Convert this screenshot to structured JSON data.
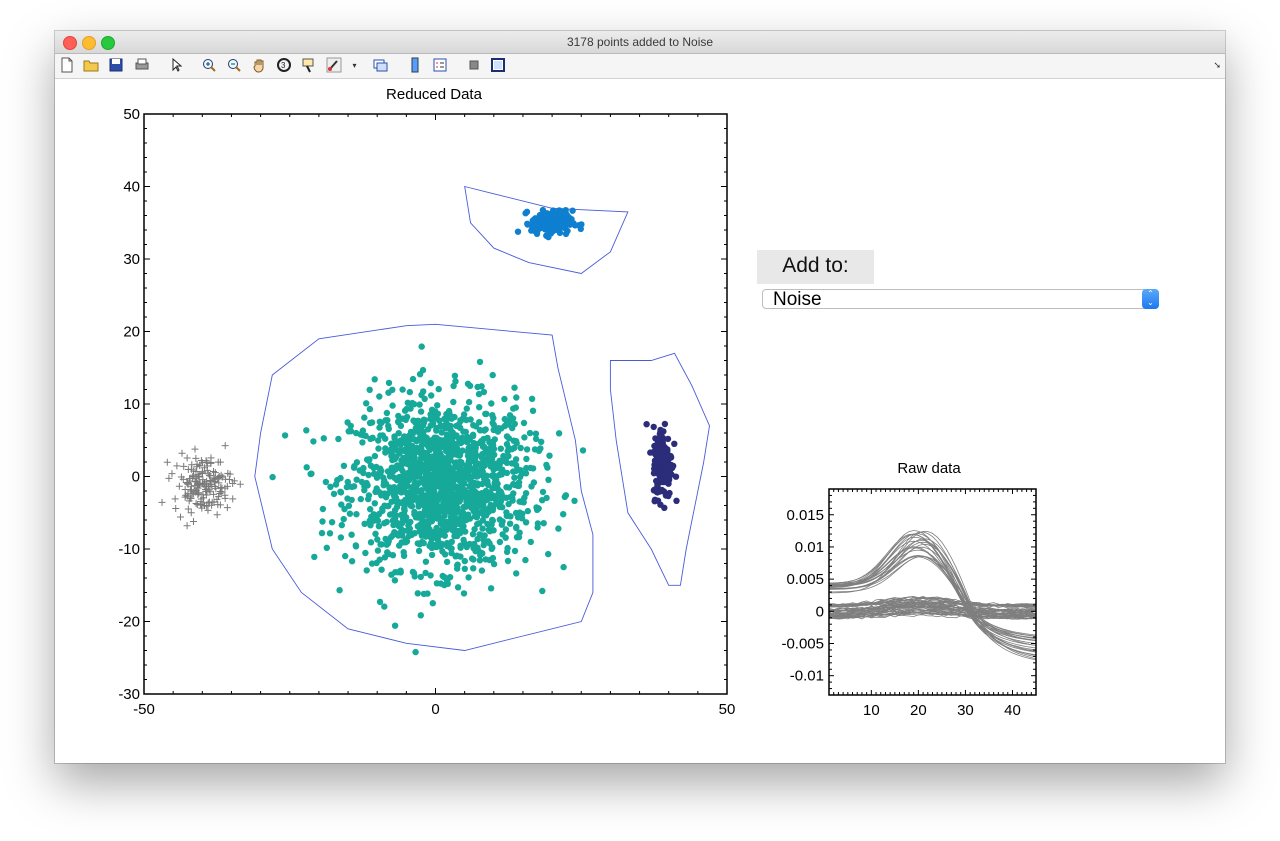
{
  "window": {
    "title": "3178 points added to Noise"
  },
  "toolbar": {
    "buttons": [
      "new-file-icon",
      "open-folder-icon",
      "save-icon",
      "print-icon",
      "pointer-icon",
      "zoom-in-icon",
      "zoom-out-icon",
      "pan-hand-icon",
      "rotate-icon",
      "datatip-icon",
      "brush-icon",
      "brush-dropdown-icon",
      "link-plot-icon",
      "colorbar-icon",
      "legend-icon",
      "hide-plot-tools-icon",
      "show-plot-tools-icon"
    ]
  },
  "controls": {
    "add_to_label": "Add to:",
    "add_to_value": "Noise"
  },
  "colors": {
    "cluster_teal": "#16a99a",
    "cluster_blue": "#0f7fd0",
    "cluster_navy": "#2b2d7a",
    "noise": "#7a7a7a",
    "boundary": "#4a5bd8",
    "raw_trace": "#7f7f7f"
  },
  "chart_data": [
    {
      "type": "scatter",
      "title": "Reduced Data",
      "xlabel": "",
      "ylabel": "",
      "xlim": [
        -50,
        50
      ],
      "ylim": [
        -30,
        50
      ],
      "x_ticks": [
        "-50",
        "0",
        "50"
      ],
      "y_ticks": [
        "-30",
        "-20",
        "-10",
        "0",
        "10",
        "20",
        "30",
        "40",
        "50"
      ],
      "grid": false,
      "series": [
        {
          "marker": "dot",
          "color": "#16a99a",
          "center": [
            1,
            -1
          ],
          "spread": [
            14,
            10.5
          ],
          "count": 1500
        },
        {
          "marker": "dot",
          "color": "#0f7fd0",
          "center": [
            20,
            35
          ],
          "spread": [
            3.2,
            1.5
          ],
          "count": 170
        },
        {
          "marker": "dot",
          "color": "#2b2d7a",
          "center": [
            39,
            2
          ],
          "spread": [
            1.5,
            4.5
          ],
          "count": 200
        },
        {
          "marker": "plus",
          "color": "#7a7a7a",
          "center": [
            -40,
            -1
          ],
          "spread": [
            4.5,
            3.5
          ],
          "count": 170
        }
      ],
      "boundaries": [
        [
          [
            -28,
            14
          ],
          [
            -20,
            19
          ],
          [
            -5,
            20.8
          ],
          [
            0,
            21
          ],
          [
            20,
            19.5
          ],
          [
            21,
            15
          ],
          [
            24,
            5
          ],
          [
            25,
            -2
          ],
          [
            27,
            -8
          ],
          [
            27,
            -16
          ],
          [
            25,
            -20
          ],
          [
            15,
            -22
          ],
          [
            5,
            -24
          ],
          [
            -5,
            -23
          ],
          [
            -15,
            -21
          ],
          [
            -23,
            -16
          ],
          [
            -28,
            -10
          ],
          [
            -31,
            0
          ],
          [
            -30,
            6
          ]
        ],
        [
          [
            5,
            40
          ],
          [
            10,
            39
          ],
          [
            20,
            37
          ],
          [
            33,
            36.5
          ],
          [
            30,
            31
          ],
          [
            25,
            28
          ],
          [
            16,
            29.5
          ],
          [
            10,
            31.5
          ],
          [
            6,
            35
          ]
        ],
        [
          [
            30,
            16
          ],
          [
            37,
            16
          ],
          [
            41,
            17
          ],
          [
            44,
            12.5
          ],
          [
            47,
            7
          ],
          [
            46,
            2
          ],
          [
            43,
            -10
          ],
          [
            42,
            -15
          ],
          [
            40,
            -15
          ],
          [
            37,
            -10
          ],
          [
            33,
            -5
          ],
          [
            31,
            5
          ],
          [
            30,
            12
          ]
        ]
      ]
    },
    {
      "type": "line",
      "title": "Raw data",
      "xlabel": "",
      "ylabel": "",
      "xlim": [
        1,
        45
      ],
      "ylim": [
        -0.013,
        0.019
      ],
      "x_ticks": [
        "10",
        "20",
        "30",
        "40"
      ],
      "y_ticks": [
        "-0.01",
        "-0.005",
        "0",
        "0.005",
        "0.01",
        "0.015"
      ],
      "series": [
        {
          "name": "",
          "peak": 0.012,
          "baseline": 0.004,
          "trough": -0.008
        },
        {
          "name": "",
          "peak": 0.001,
          "baseline": 0.0,
          "trough": 0.0
        }
      ]
    }
  ]
}
